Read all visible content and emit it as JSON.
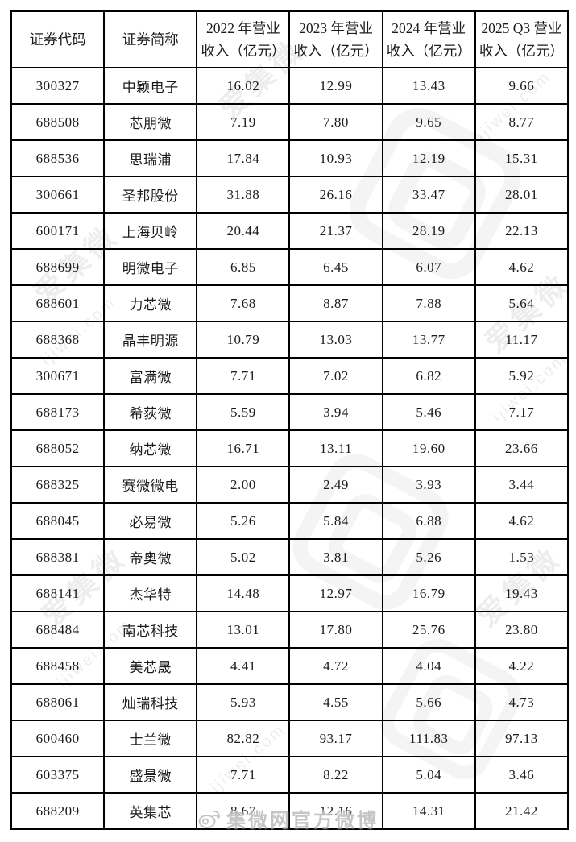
{
  "table": {
    "headers": [
      {
        "lines": [
          "证券代码"
        ]
      },
      {
        "lines": [
          "证券简称"
        ]
      },
      {
        "lines": [
          "2022 年营业",
          "收入（亿元）"
        ]
      },
      {
        "lines": [
          "2023 年营业",
          "收入（亿元）"
        ]
      },
      {
        "lines": [
          "2024 年营业",
          "收入（亿元）"
        ]
      },
      {
        "lines": [
          "2025 Q3 营业",
          "收入（亿元）"
        ]
      }
    ],
    "rows": [
      [
        "300327",
        "中颖电子",
        "16.02",
        "12.99",
        "13.43",
        "9.66"
      ],
      [
        "688508",
        "芯朋微",
        "7.19",
        "7.80",
        "9.65",
        "8.77"
      ],
      [
        "688536",
        "思瑞浦",
        "17.84",
        "10.93",
        "12.19",
        "15.31"
      ],
      [
        "300661",
        "圣邦股份",
        "31.88",
        "26.16",
        "33.47",
        "28.01"
      ],
      [
        "600171",
        "上海贝岭",
        "20.44",
        "21.37",
        "28.19",
        "22.13"
      ],
      [
        "688699",
        "明微电子",
        "6.85",
        "6.45",
        "6.07",
        "4.62"
      ],
      [
        "688601",
        "力芯微",
        "7.68",
        "8.87",
        "7.88",
        "5.64"
      ],
      [
        "688368",
        "晶丰明源",
        "10.79",
        "13.03",
        "13.77",
        "11.17"
      ],
      [
        "300671",
        "富满微",
        "7.71",
        "7.02",
        "6.82",
        "5.92"
      ],
      [
        "688173",
        "希荻微",
        "5.59",
        "3.94",
        "5.46",
        "7.17"
      ],
      [
        "688052",
        "纳芯微",
        "16.71",
        "13.11",
        "19.60",
        "23.66"
      ],
      [
        "688325",
        "赛微微电",
        "2.00",
        "2.49",
        "3.93",
        "3.44"
      ],
      [
        "688045",
        "必易微",
        "5.26",
        "5.84",
        "6.88",
        "4.62"
      ],
      [
        "688381",
        "帝奥微",
        "5.02",
        "3.81",
        "5.26",
        "1.53"
      ],
      [
        "688141",
        "杰华特",
        "14.48",
        "12.97",
        "16.79",
        "19.43"
      ],
      [
        "688484",
        "南芯科技",
        "13.01",
        "17.80",
        "25.76",
        "23.80"
      ],
      [
        "688458",
        "美芯晟",
        "4.41",
        "4.72",
        "4.04",
        "4.22"
      ],
      [
        "688061",
        "灿瑞科技",
        "5.93",
        "4.55",
        "5.66",
        "4.73"
      ],
      [
        "600460",
        "士兰微",
        "82.82",
        "93.17",
        "111.83",
        "97.13"
      ],
      [
        "603375",
        "盛景微",
        "7.71",
        "8.22",
        "5.04",
        "3.46"
      ],
      [
        "688209",
        "英集芯",
        "8.67",
        "12.16",
        "14.31",
        "21.42"
      ]
    ]
  },
  "watermark": {
    "brand": "爱集微",
    "domain": "ijiwei.com",
    "footer": "集微网官方微博"
  },
  "colors": {
    "table_border": "#000000",
    "text": "#1b1b1b",
    "watermark_gray": "#828282"
  }
}
